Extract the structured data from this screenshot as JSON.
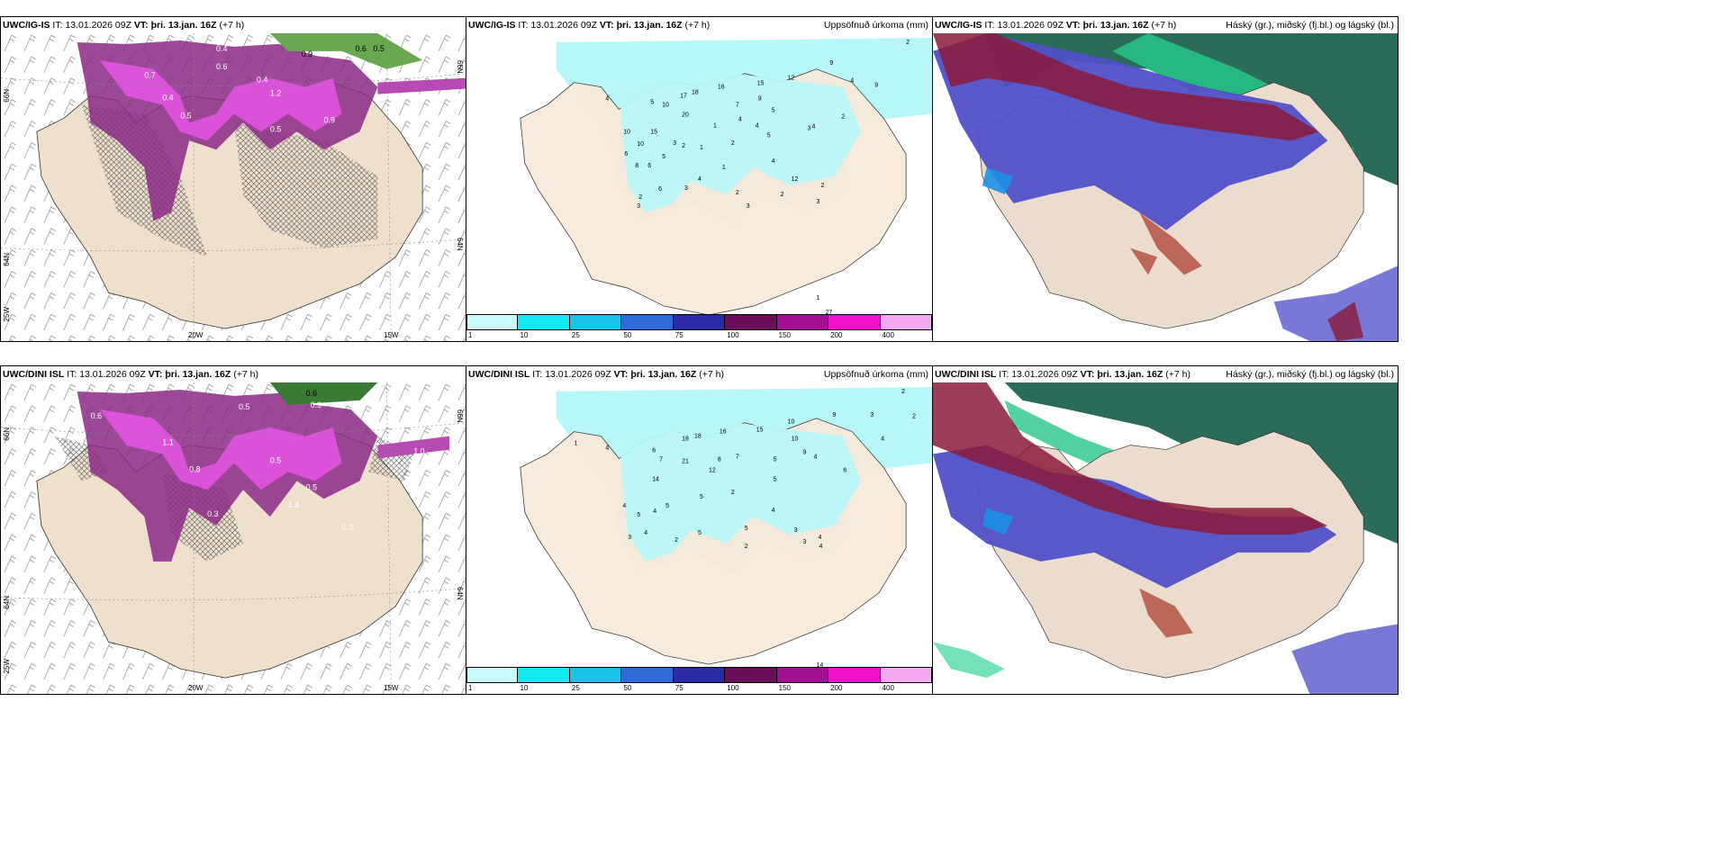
{
  "panels": [
    {
      "model": "UWC/IG-IS",
      "it_label": "IT:",
      "it": "13.01.2026 09Z",
      "vt_label": "VT: þri. 13.jan. 16Z",
      "lead": "(+7 h)",
      "right": ""
    },
    {
      "model": "UWC/IG-IS",
      "it_label": "IT:",
      "it": "13.01.2026 09Z",
      "vt_label": "VT: þri. 13.jan. 16Z",
      "lead": "(+7 h)",
      "right": "Uppsöfnuð úrkoma (mm)"
    },
    {
      "model": "UWC/IG-IS",
      "it_label": "IT:",
      "it": "13.01.2026 09Z",
      "vt_label": "VT: þri. 13.jan. 16Z",
      "lead": "(+7 h)",
      "right": "Háský (gr.), miðský (fj.bl.) og lágský (bl.)"
    },
    {
      "model": "UWC/DINI ISL",
      "it_label": "IT:",
      "it": "13.01.2026 09Z",
      "vt_label": "VT: þri. 13.jan. 16Z",
      "lead": "(+7 h)",
      "right": ""
    },
    {
      "model": "UWC/DINI ISL",
      "it_label": "IT:",
      "it": "13.01.2026 09Z",
      "vt_label": "VT: þri. 13.jan. 16Z",
      "lead": "(+7 h)",
      "right": "Uppsöfnuð úrkoma (mm)"
    },
    {
      "model": "UWC/DINI ISL",
      "it_label": "IT:",
      "it": "13.01.2026 09Z",
      "vt_label": "VT: þri. 13.jan. 16Z",
      "lead": "(+7 h)",
      "right": "Háský (gr.), miðský (fj.bl.) og lágský (bl.)"
    }
  ],
  "axis_labels": {
    "lat66": "66N",
    "lat64": "64N",
    "lon25": "25W",
    "lon20": "20W",
    "lon15": "15W"
  },
  "colorbar": {
    "ticks": [
      "1",
      "10",
      "25",
      "50",
      "75",
      "100",
      "150",
      "200",
      "400"
    ],
    "colors": [
      "#c7fbfb",
      "#14e8f0",
      "#19c2e6",
      "#2f6ad8",
      "#2d2aa6",
      "#6a0e5a",
      "#a01090",
      "#f012c8",
      "#f4a8f0"
    ]
  },
  "precip_ig": [
    "2",
    "9",
    "4",
    "9",
    "12",
    "16",
    "18",
    "15",
    "4",
    "17",
    "10",
    "5",
    "20",
    "10",
    "7",
    "4",
    "1",
    "9",
    "5",
    "4",
    "2",
    "3",
    "10",
    "15",
    "2",
    "1",
    "5",
    "4",
    "4",
    "1",
    "6",
    "8",
    "6",
    "5",
    "3",
    "2",
    "3",
    "6",
    "2",
    "3",
    "4",
    "2",
    "3",
    "2",
    "2",
    "12",
    "3",
    "1",
    "27"
  ],
  "precip_dini": [
    "2",
    "2",
    "3",
    "4",
    "10",
    "9",
    "15",
    "16",
    "18",
    "18",
    "21",
    "4",
    "1",
    "6",
    "7",
    "14",
    "12",
    "8",
    "7",
    "5",
    "10",
    "4",
    "5",
    "2",
    "5",
    "9",
    "4",
    "5",
    "4",
    "5",
    "4",
    "5",
    "2",
    "3",
    "6",
    "4",
    "5",
    "2",
    "4",
    "3",
    "4",
    "3",
    "14"
  ],
  "wind_ig": [
    "0.6",
    "0.5",
    "0.9",
    "0.4",
    "0.7",
    "0.5",
    "1.2",
    "0.9",
    "0.6",
    "0.4",
    "0.4",
    "0.5"
  ],
  "wind_dini": [
    "0.6",
    "0.5",
    "0.9",
    "1.4",
    "0.6",
    "0.8",
    "1.0",
    "0.5",
    "0.3",
    "1.1",
    "0.5",
    "0.3"
  ]
}
